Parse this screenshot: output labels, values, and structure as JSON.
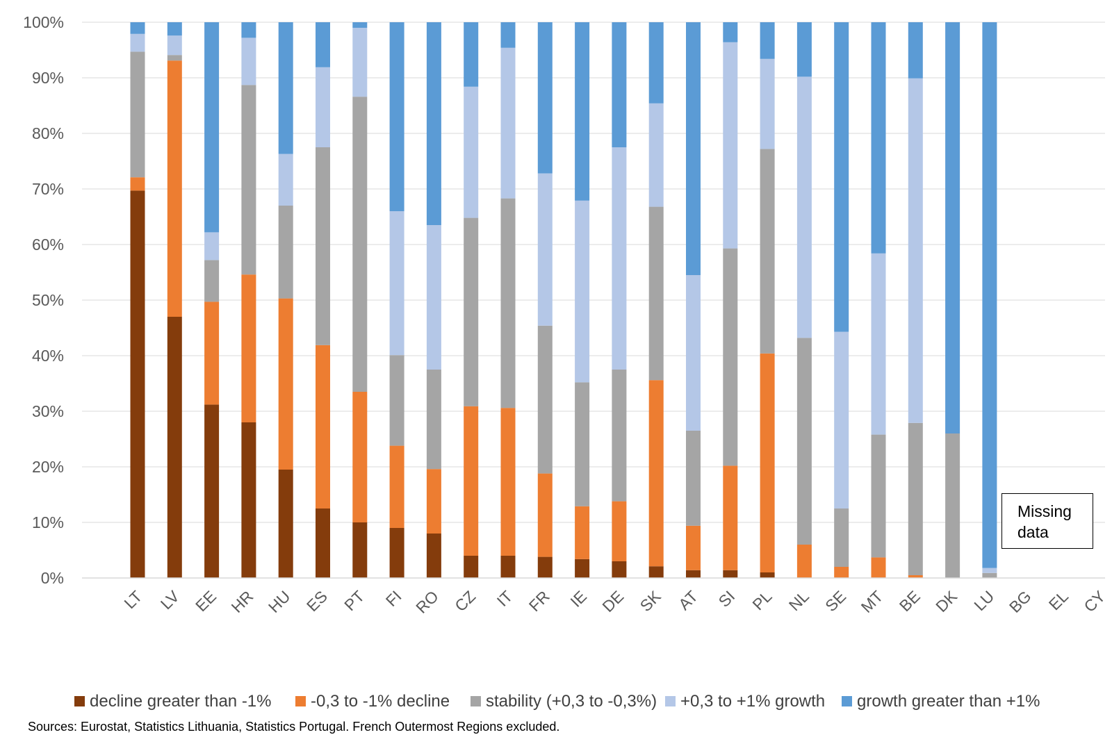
{
  "chart_data": {
    "type": "bar",
    "stacked": true,
    "orientation": "vertical",
    "ylim": [
      0,
      100
    ],
    "y_ticks": [
      "0%",
      "10%",
      "20%",
      "30%",
      "40%",
      "50%",
      "60%",
      "70%",
      "80%",
      "90%",
      "100%"
    ],
    "grid": "horizontal",
    "legend_position": "bottom",
    "categories": [
      "LT",
      "LV",
      "EE",
      "HR",
      "HU",
      "ES",
      "PT",
      "FI",
      "RO",
      "CZ",
      "IT",
      "FR",
      "IE",
      "DE",
      "SK",
      "AT",
      "SI",
      "PL",
      "NL",
      "SE",
      "MT",
      "BE",
      "DK",
      "LU",
      "BG",
      "EL",
      "CY"
    ],
    "series": [
      {
        "name": "decline greater than -1%",
        "color": "#843C0C",
        "values": [
          69.7,
          47.0,
          31.2,
          28.0,
          19.5,
          12.5,
          10.0,
          9.0,
          8.0,
          4.0,
          4.0,
          3.8,
          3.4,
          3.0,
          2.1,
          1.4,
          1.4,
          1.0,
          0,
          0,
          0,
          0,
          0,
          0,
          null,
          null,
          null
        ]
      },
      {
        "name": "-0,3 to -1% decline",
        "color": "#ED7D31",
        "values": [
          2.4,
          46.1,
          18.5,
          26.6,
          30.8,
          29.4,
          23.5,
          14.8,
          11.6,
          26.9,
          26.6,
          15.0,
          9.5,
          10.8,
          33.5,
          8.0,
          18.8,
          39.4,
          6.0,
          2.0,
          3.7,
          0.5,
          0,
          0,
          null,
          null,
          null
        ]
      },
      {
        "name": "stability (+0,3 to -0,3%)",
        "color": "#A5A5A5",
        "values": [
          22.6,
          1.0,
          7.5,
          34.1,
          16.7,
          35.6,
          53.1,
          16.3,
          17.9,
          33.9,
          37.7,
          26.6,
          22.3,
          23.7,
          31.2,
          17.1,
          39.1,
          36.8,
          37.2,
          10.5,
          22.1,
          27.4,
          26.0,
          0.9,
          null,
          null,
          null
        ]
      },
      {
        "name": "+0,3 to +1% growth",
        "color": "#B4C7E7",
        "values": [
          3.2,
          3.5,
          5.0,
          8.5,
          9.3,
          14.4,
          12.4,
          25.9,
          26.0,
          23.6,
          27.1,
          27.4,
          32.7,
          40.0,
          18.6,
          28.0,
          37.1,
          16.2,
          47.0,
          31.8,
          32.6,
          62.0,
          0,
          0.9,
          null,
          null,
          null
        ]
      },
      {
        "name": "growth greater than +1%",
        "color": "#5B9BD5",
        "values": [
          2.1,
          2.4,
          37.8,
          2.8,
          23.7,
          8.1,
          1.0,
          34.0,
          36.5,
          11.6,
          4.6,
          27.2,
          32.1,
          22.5,
          14.6,
          45.5,
          3.6,
          6.6,
          9.8,
          55.7,
          41.6,
          10.1,
          74.0,
          98.2,
          null,
          null,
          null
        ]
      }
    ],
    "annotations": [
      "Missing data"
    ]
  },
  "annotation": {
    "missing_label": "Missing data"
  },
  "source_note": "Sources: Eurostat, Statistics Lithuania, Statistics Portugal. French Outermost Regions excluded."
}
